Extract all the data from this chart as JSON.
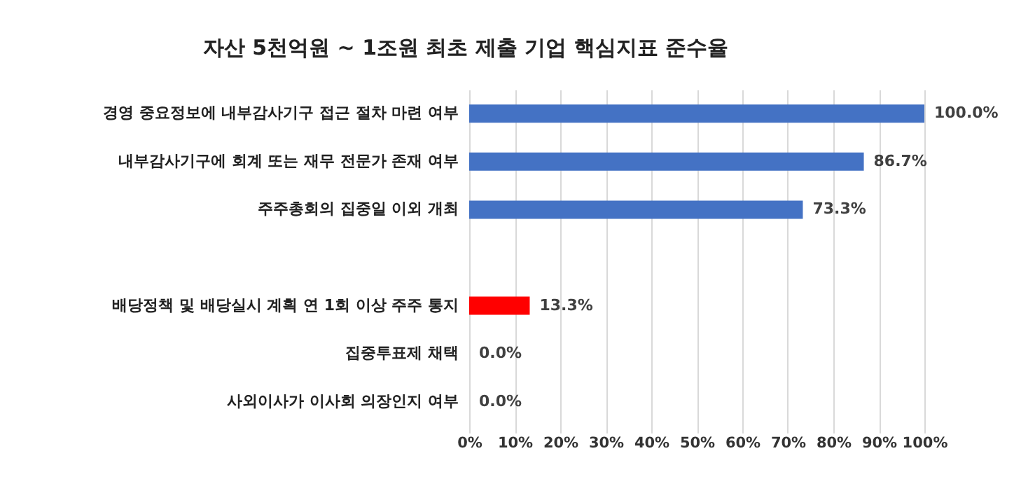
{
  "chart_data": {
    "type": "bar",
    "orientation": "horizontal",
    "title": "자산 5천억원 ~ 1조원 최초 제출 기업 핵심지표 준수율",
    "categories": [
      "경영 중요정보에 내부감사기구 접근 절차 마련 여부",
      "내부감사기구에 회계 또는 재무 전문가 존재 여부",
      "주주총회의 집중일 이외 개최",
      null,
      "배당정책 및 배당실시 계획 연 1회 이상 주주 통지",
      "집중투표제 채택",
      "사외이사가 이사회 의장인지 여부"
    ],
    "values": [
      100,
      86.7,
      73.3,
      null,
      13.3,
      0,
      0
    ],
    "colors": [
      "#4472c4",
      "#4472c4",
      "#4472c4",
      "#4472c4",
      "#ff0000",
      "#4472c4",
      "#4472c4"
    ],
    "value_labels": [
      "100.0%",
      "86.7%",
      "73.3%",
      null,
      "13.3%",
      "0.0%",
      "0.0%"
    ],
    "xlim": [
      0,
      100
    ],
    "xticks": [
      {
        "value": 0,
        "label": "0%"
      },
      {
        "value": 10,
        "label": "10%"
      },
      {
        "value": 20,
        "label": "20%"
      },
      {
        "value": 30,
        "label": "30%"
      },
      {
        "value": 40,
        "label": "40%"
      },
      {
        "value": 50,
        "label": "50%"
      },
      {
        "value": 60,
        "label": "60%"
      },
      {
        "value": 70,
        "label": "70%"
      },
      {
        "value": 80,
        "label": "80%"
      },
      {
        "value": 90,
        "label": "90%"
      },
      {
        "value": 100,
        "label": "100%"
      }
    ],
    "grid": "x"
  }
}
